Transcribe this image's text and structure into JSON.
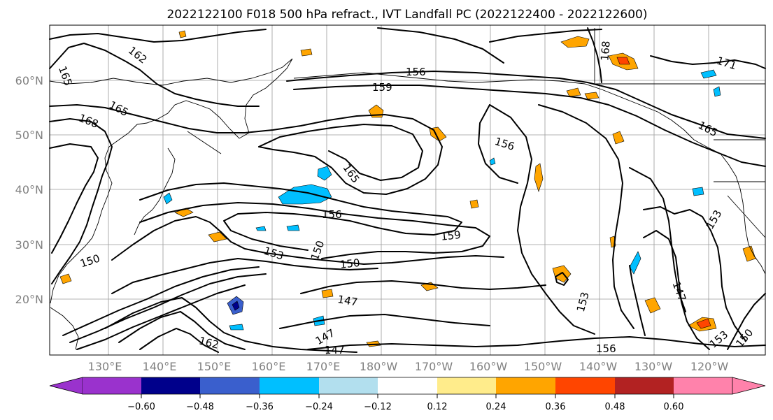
{
  "title": "2022122100 F018 500 hPa refract., IVT Landfall PC (2022122400 - 2022122600)",
  "lat_labels": [
    "60°N",
    "50°N",
    "40°N",
    "30°N",
    "20°N"
  ],
  "lon_labels": [
    "130°E",
    "140°E",
    "150°E",
    "160°E",
    "170°E",
    "180°W",
    "170°W",
    "160°W",
    "150°W",
    "140°W",
    "130°W",
    "120°W"
  ],
  "contour_labels": [
    "165",
    "162",
    "156",
    "159",
    "168",
    "171",
    "165",
    "168",
    "165",
    "156",
    "165",
    "156",
    "159",
    "150",
    "153",
    "150",
    "150",
    "153",
    "147",
    "147",
    "153",
    "147",
    "156",
    "153",
    "150",
    "162",
    "147"
  ],
  "colorbar": {
    "ticks": [
      "−0.60",
      "−0.48",
      "−0.36",
      "−0.24",
      "−0.12",
      "0.12",
      "0.24",
      "0.36",
      "0.48",
      "0.60"
    ],
    "colors": [
      "#9a32cd",
      "#00008b",
      "#3a5fcd",
      "#00bfff",
      "#b2dfee",
      "#ffffff",
      "#ffec8b",
      "#ffa500",
      "#ff4500",
      "#b22222",
      "#ff82ab"
    ]
  },
  "fill_colors": {
    "neg_light": "#b2dfee",
    "neg_mid": "#00bfff",
    "neg_strong": "#3a5fcd",
    "neg_max": "#00008b",
    "pos_light": "#ffec8b",
    "pos_mid": "#ffa500",
    "pos_strong": "#ff4500",
    "pos_max": "#b22222"
  }
}
